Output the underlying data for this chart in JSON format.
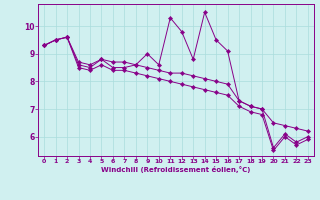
{
  "xlabel": "Windchill (Refroidissement éolien,°C)",
  "bg_color": "#d0f0f0",
  "line_color": "#880088",
  "grid_color": "#aadddd",
  "x_ticks": [
    0,
    1,
    2,
    3,
    4,
    5,
    6,
    7,
    8,
    9,
    10,
    11,
    12,
    13,
    14,
    15,
    16,
    17,
    18,
    19,
    20,
    21,
    22,
    23
  ],
  "y_ticks": [
    6,
    7,
    8,
    9,
    10
  ],
  "ylim": [
    5.3,
    10.8
  ],
  "xlim": [
    -0.5,
    23.5
  ],
  "series": [
    [
      9.3,
      9.5,
      9.6,
      8.7,
      8.6,
      8.8,
      8.7,
      8.7,
      8.6,
      8.5,
      8.4,
      8.3,
      8.3,
      8.2,
      8.1,
      8.0,
      7.9,
      7.3,
      7.1,
      7.0,
      6.5,
      6.4,
      6.3,
      6.2
    ],
    [
      9.3,
      9.5,
      9.6,
      8.6,
      8.5,
      8.8,
      8.5,
      8.5,
      8.6,
      9.0,
      8.6,
      10.3,
      9.8,
      8.8,
      10.5,
      9.5,
      9.1,
      7.3,
      7.1,
      7.0,
      5.6,
      6.1,
      5.8,
      6.0
    ],
    [
      9.3,
      9.5,
      9.6,
      8.5,
      8.4,
      8.6,
      8.4,
      8.4,
      8.3,
      8.2,
      8.1,
      8.0,
      7.9,
      7.8,
      7.7,
      7.6,
      7.5,
      7.1,
      6.9,
      6.8,
      5.5,
      6.0,
      5.7,
      5.9
    ]
  ]
}
